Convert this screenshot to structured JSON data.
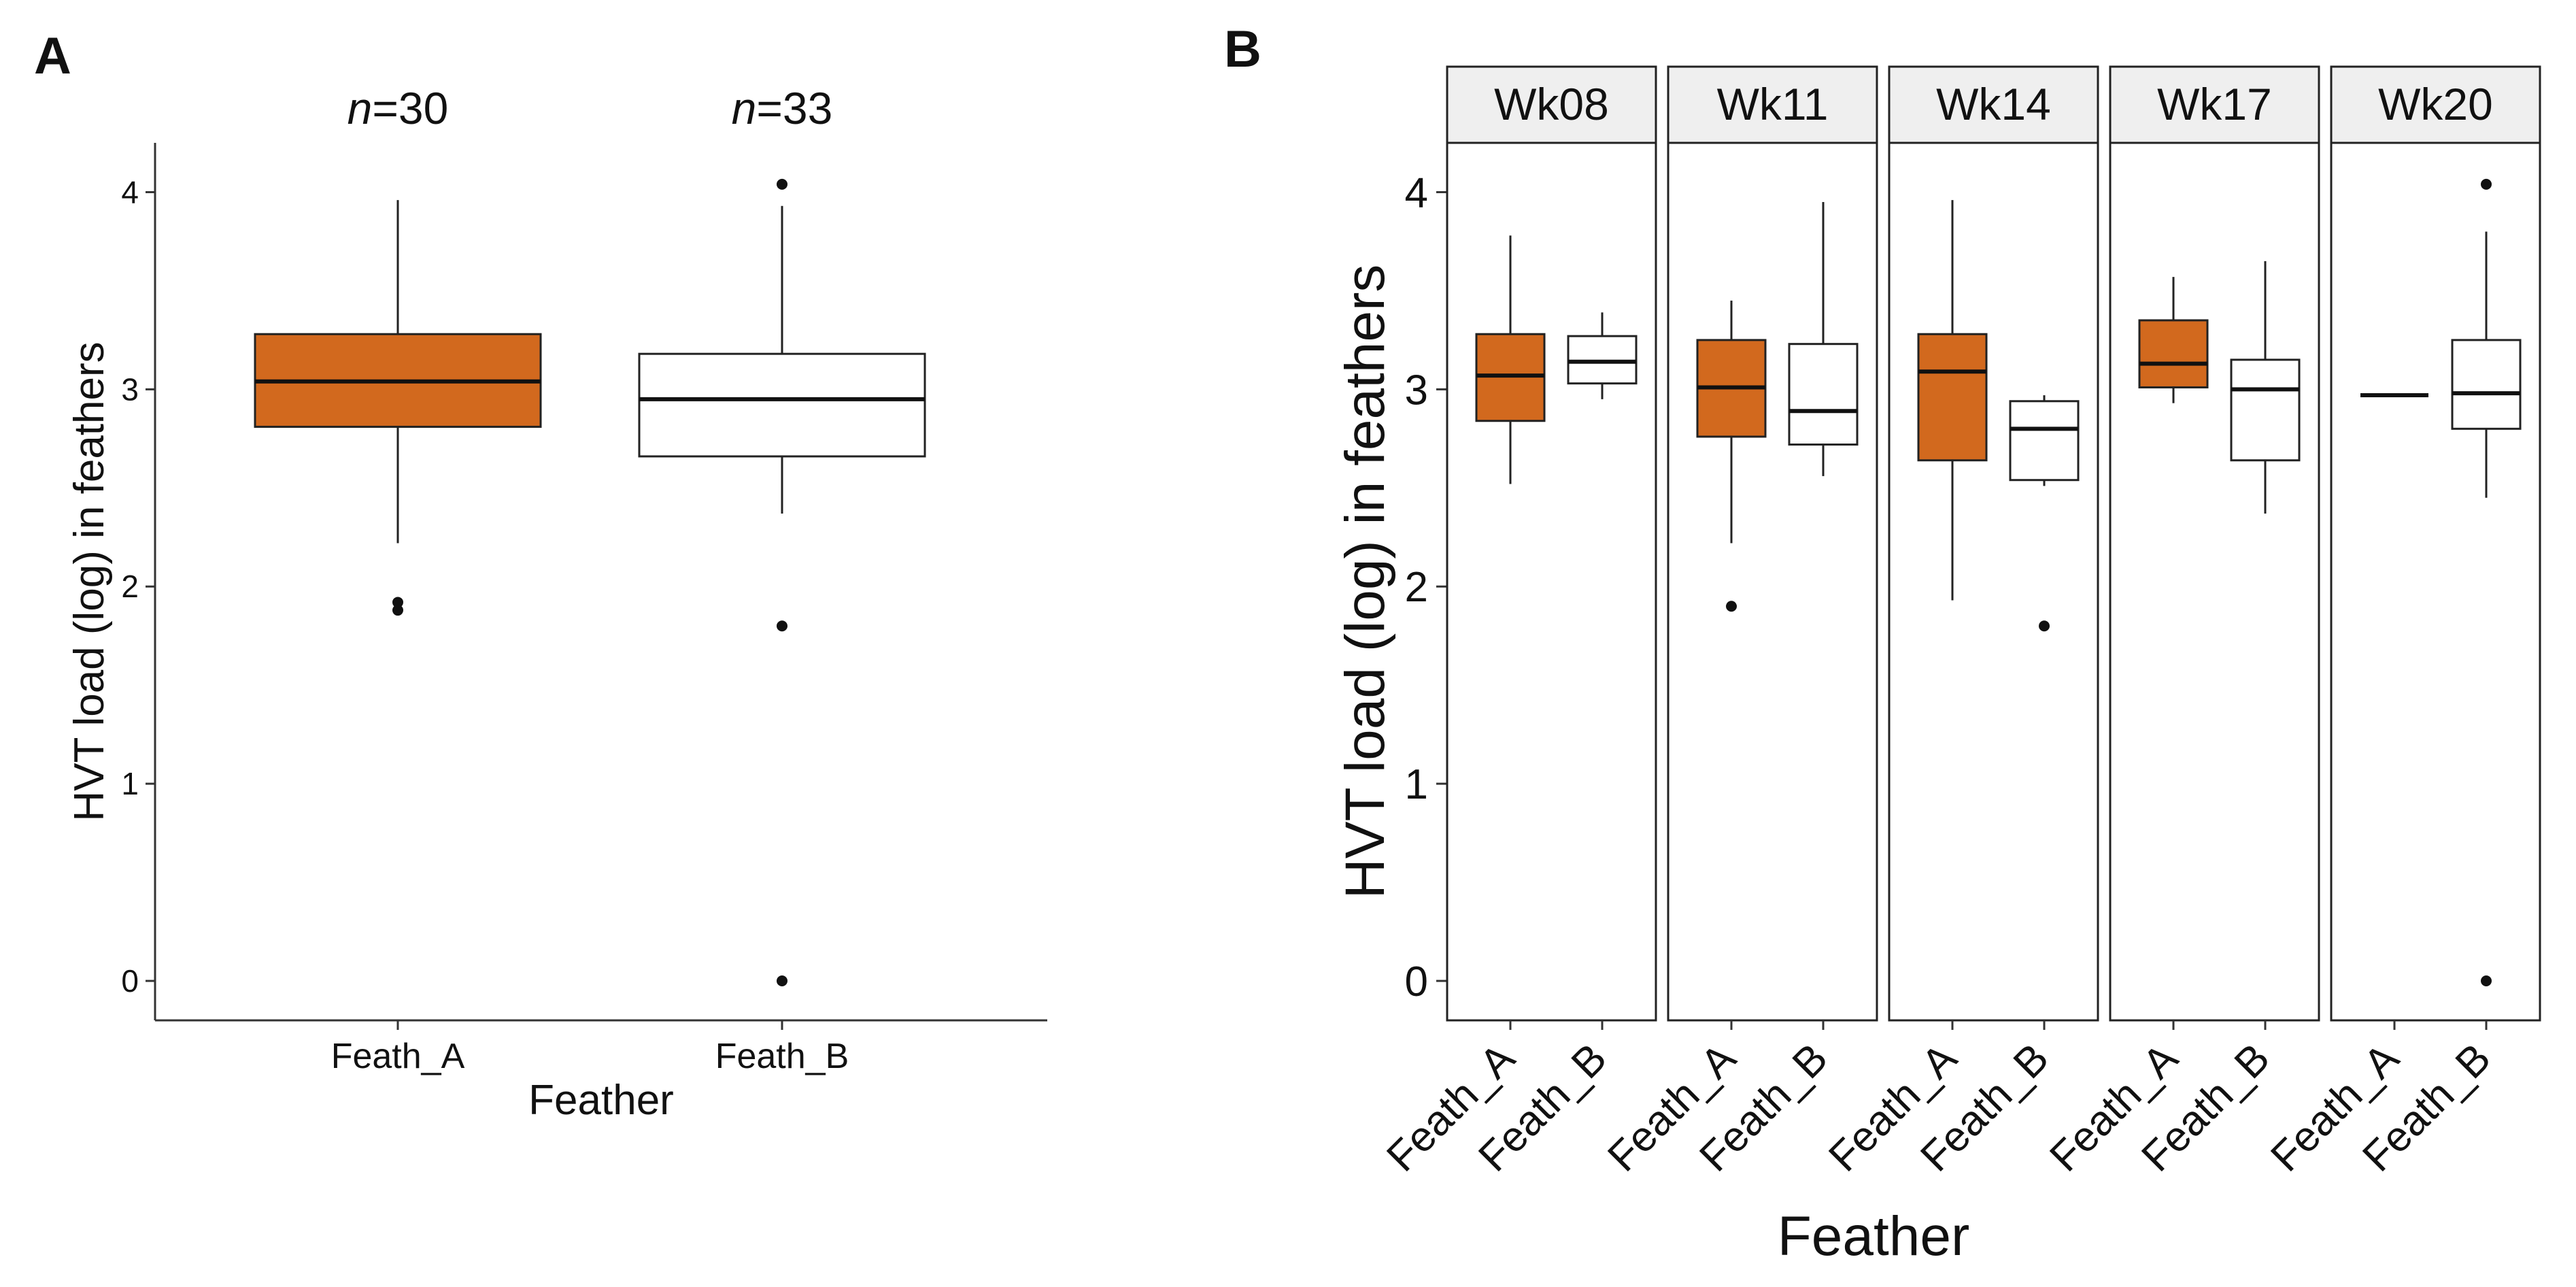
{
  "colors": {
    "fill_a": "#D2691E",
    "fill_b": "#FFFFFF",
    "strip_bg": "#EFEFEF",
    "line": "#222222",
    "axis": "#333333"
  },
  "chart_data": [
    {
      "panel_label": "A",
      "type": "boxplot",
      "xlabel": "Feather",
      "ylabel": "HVT load (log) in feathers",
      "categories": [
        "Feath_A",
        "Feath_B"
      ],
      "ylim": [
        -0.2,
        4.25
      ],
      "yticks": [
        "0",
        "1",
        "2",
        "3",
        "4"
      ],
      "annotations": [
        {
          "italic": "n",
          "text": "=30"
        },
        {
          "italic": "n",
          "text": "=33"
        }
      ],
      "boxes": [
        {
          "category": "Feath_A",
          "fill": "#D2691E",
          "whisker_low": 2.22,
          "q1": 2.81,
          "median": 3.04,
          "q3": 3.28,
          "whisker_high": 3.96,
          "outliers": [
            1.92,
            1.88
          ]
        },
        {
          "category": "Feath_B",
          "fill": "#FFFFFF",
          "whisker_low": 2.37,
          "q1": 2.66,
          "median": 2.95,
          "q3": 3.18,
          "whisker_high": 3.93,
          "outliers": [
            4.04,
            1.8,
            0.0
          ]
        }
      ]
    },
    {
      "panel_label": "B",
      "type": "boxplot-faceted",
      "xlabel": "Feather",
      "ylabel": "HVT load (log) in feathers",
      "ylim": [
        -0.2,
        4.25
      ],
      "yticks": [
        "0",
        "1",
        "2",
        "3",
        "4"
      ],
      "facets": [
        {
          "label": "Wk08",
          "categories": [
            "Feath_A",
            "Feath_B"
          ],
          "boxes": [
            {
              "category": "Feath_A",
              "fill": "#D2691E",
              "whisker_low": 2.52,
              "q1": 2.84,
              "median": 3.07,
              "q3": 3.28,
              "whisker_high": 3.78,
              "outliers": []
            },
            {
              "category": "Feath_B",
              "fill": "#FFFFFF",
              "whisker_low": 2.95,
              "q1": 3.03,
              "median": 3.14,
              "q3": 3.27,
              "whisker_high": 3.39,
              "outliers": []
            }
          ]
        },
        {
          "label": "Wk11",
          "categories": [
            "Feath_A",
            "Feath_B"
          ],
          "boxes": [
            {
              "category": "Feath_A",
              "fill": "#D2691E",
              "whisker_low": 2.22,
              "q1": 2.76,
              "median": 3.01,
              "q3": 3.25,
              "whisker_high": 3.45,
              "outliers": [
                1.9
              ]
            },
            {
              "category": "Feath_B",
              "fill": "#FFFFFF",
              "whisker_low": 2.56,
              "q1": 2.72,
              "median": 2.89,
              "q3": 3.23,
              "whisker_high": 3.95,
              "outliers": []
            }
          ]
        },
        {
          "label": "Wk14",
          "categories": [
            "Feath_A",
            "Feath_B"
          ],
          "boxes": [
            {
              "category": "Feath_A",
              "fill": "#D2691E",
              "whisker_low": 1.93,
              "q1": 2.64,
              "median": 3.09,
              "q3": 3.28,
              "whisker_high": 3.96,
              "outliers": []
            },
            {
              "category": "Feath_B",
              "fill": "#FFFFFF",
              "whisker_low": 2.51,
              "q1": 2.54,
              "median": 2.8,
              "q3": 2.94,
              "whisker_high": 2.97,
              "outliers": [
                1.8
              ]
            }
          ]
        },
        {
          "label": "Wk17",
          "categories": [
            "Feath_A",
            "Feath_B"
          ],
          "boxes": [
            {
              "category": "Feath_A",
              "fill": "#D2691E",
              "whisker_low": 2.93,
              "q1": 3.01,
              "median": 3.13,
              "q3": 3.35,
              "whisker_high": 3.57,
              "outliers": []
            },
            {
              "category": "Feath_B",
              "fill": "#FFFFFF",
              "whisker_low": 2.37,
              "q1": 2.64,
              "median": 3.0,
              "q3": 3.15,
              "whisker_high": 3.65,
              "outliers": []
            }
          ]
        },
        {
          "label": "Wk20",
          "categories": [
            "Feath_A",
            "Feath_B"
          ],
          "boxes": [
            {
              "category": "Feath_A",
              "fill": "#D2691E",
              "whisker_low": 2.97,
              "q1": 2.97,
              "median": 2.97,
              "q3": 2.97,
              "whisker_high": 2.97,
              "outliers": []
            },
            {
              "category": "Feath_B",
              "fill": "#FFFFFF",
              "whisker_low": 2.45,
              "q1": 2.8,
              "median": 2.98,
              "q3": 3.25,
              "whisker_high": 3.8,
              "outliers": [
                4.04,
                0.0
              ]
            }
          ]
        }
      ]
    }
  ]
}
